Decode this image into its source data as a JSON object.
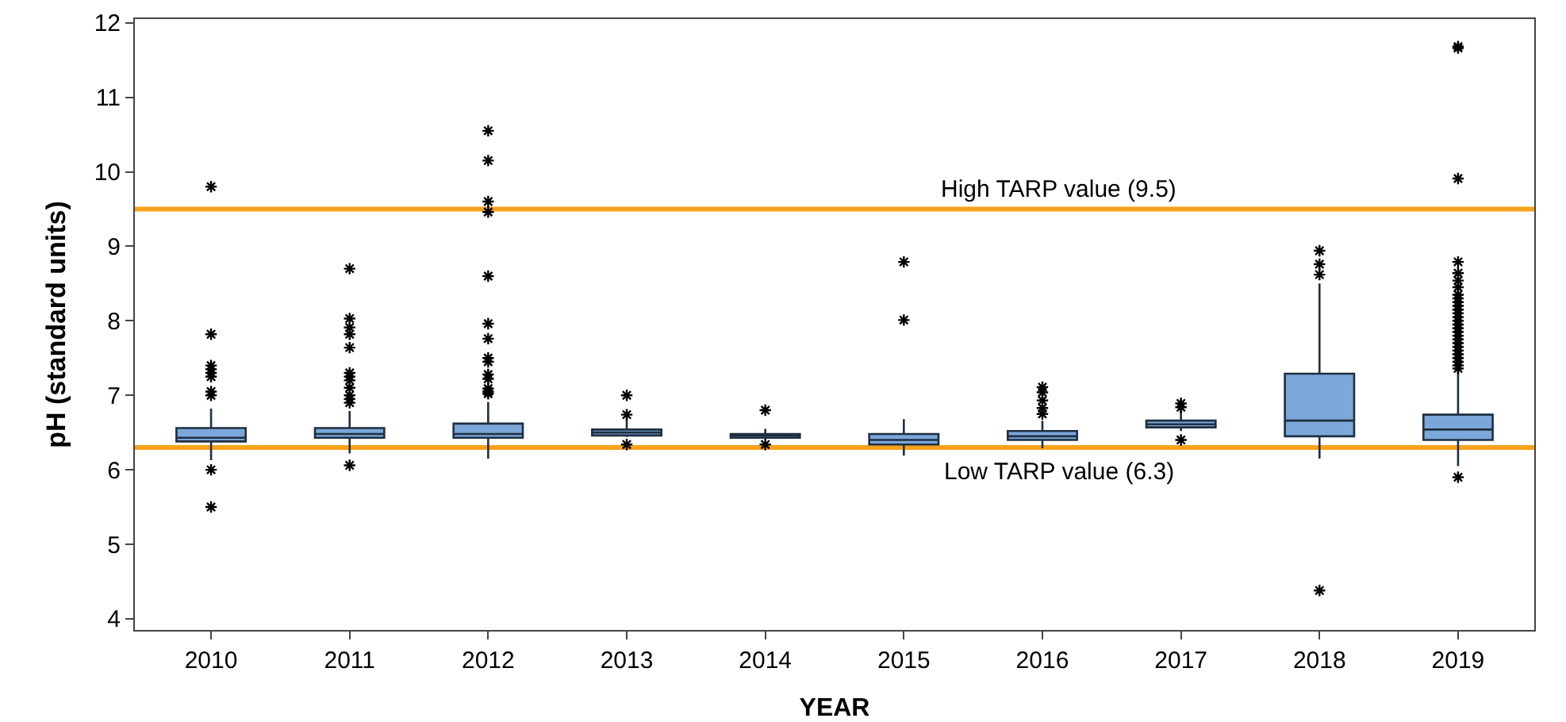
{
  "chart_data": {
    "type": "box",
    "xlabel": "YEAR",
    "ylabel": "pH (standard units)",
    "categories": [
      "2010",
      "2011",
      "2012",
      "2013",
      "2014",
      "2015",
      "2016",
      "2017",
      "2018",
      "2019"
    ],
    "color": "#7ba7da",
    "boxes": [
      {
        "low": 6.13,
        "q1": 6.38,
        "median": 6.43,
        "q3": 6.56,
        "high": 6.82,
        "outliers": [
          9.8,
          7.82,
          7.4,
          7.35,
          7.3,
          7.25,
          7.05,
          7.0,
          6.0,
          5.5
        ]
      },
      {
        "low": 6.22,
        "q1": 6.43,
        "median": 6.48,
        "q3": 6.56,
        "high": 6.79,
        "outliers": [
          8.7,
          8.03,
          7.91,
          7.82,
          7.64,
          7.3,
          7.25,
          7.2,
          7.1,
          7.0,
          6.95,
          6.9,
          6.06
        ]
      },
      {
        "low": 6.15,
        "q1": 6.43,
        "median": 6.48,
        "q3": 6.62,
        "high": 6.91,
        "outliers": [
          10.55,
          10.15,
          9.6,
          9.46,
          8.6,
          7.96,
          7.76,
          7.5,
          7.45,
          7.28,
          7.22,
          7.09,
          7.05,
          7.02
        ]
      },
      {
        "low": 6.44,
        "q1": 6.46,
        "median": 6.5,
        "q3": 6.54,
        "high": 6.68,
        "outliers": [
          7.0,
          6.74,
          6.34
        ]
      },
      {
        "low": 6.43,
        "q1": 6.43,
        "median": 6.46,
        "q3": 6.48,
        "high": 6.55,
        "outliers": [
          6.8,
          6.34
        ]
      },
      {
        "low": 6.19,
        "q1": 6.34,
        "median": 6.4,
        "q3": 6.48,
        "high": 6.68,
        "outliers": [
          8.79,
          8.01
        ]
      },
      {
        "low": 6.29,
        "q1": 6.4,
        "median": 6.45,
        "q3": 6.52,
        "high": 6.66,
        "outliers": [
          7.11,
          7.04,
          6.93,
          6.83,
          6.75
        ]
      },
      {
        "low": 6.52,
        "q1": 6.57,
        "median": 6.61,
        "q3": 6.66,
        "high": 6.8,
        "outliers": [
          6.89,
          6.84,
          6.4
        ]
      },
      {
        "low": 6.15,
        "q1": 6.45,
        "median": 6.66,
        "q3": 7.29,
        "high": 8.5,
        "outliers": [
          8.94,
          8.76,
          8.62,
          4.38
        ]
      },
      {
        "low": 6.05,
        "q1": 6.4,
        "median": 6.54,
        "q3": 6.74,
        "high": 7.32,
        "outliers": [
          11.68,
          11.66,
          9.91,
          8.79,
          8.64,
          8.54,
          8.45,
          8.35,
          8.3,
          8.25,
          8.2,
          8.15,
          8.1,
          8.05,
          8.0,
          7.95,
          7.9,
          7.85,
          7.8,
          7.75,
          7.7,
          7.65,
          7.6,
          7.55,
          7.5,
          7.45,
          7.4,
          7.36,
          5.9
        ]
      }
    ],
    "ylim": [
      3.85,
      12.05
    ],
    "yticks": [
      4,
      5,
      6,
      7,
      8,
      9,
      10,
      11,
      12
    ],
    "ref_lines": [
      {
        "axis": "y",
        "value": 9.5,
        "label": "High TARP value (9.5)",
        "color": "#f7a21b"
      },
      {
        "axis": "y",
        "value": 6.3,
        "label": "Low TARP value (6.3)",
        "color": "#f7a21b"
      }
    ],
    "grid": false
  }
}
